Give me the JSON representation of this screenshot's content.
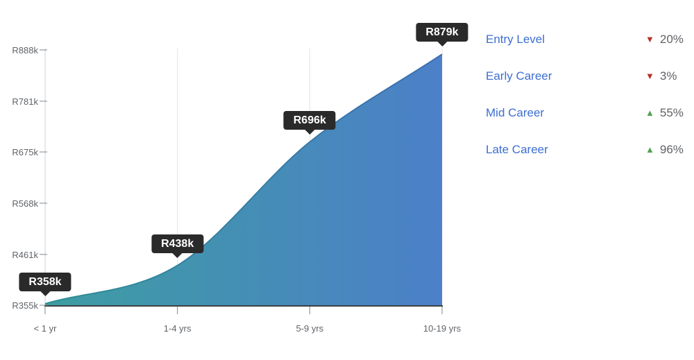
{
  "chart_data": {
    "type": "area",
    "title": "",
    "x_tick_labels": [
      "< 1 yr",
      "1-4 yrs",
      "5-9 yrs",
      "10-19 yrs"
    ],
    "values": [
      358,
      438,
      696,
      879
    ],
    "point_labels": [
      "R358k",
      "R438k",
      "R696k",
      "R879k"
    ],
    "y_tick_labels": [
      "R355k",
      "R461k",
      "R568k",
      "R675k",
      "R781k",
      "R888k"
    ],
    "y_tick_values": [
      355,
      461,
      568,
      675,
      781,
      888
    ],
    "ylim": [
      355,
      888
    ],
    "curve": "monotone",
    "grid": "vertical-only",
    "legend_position": "right"
  },
  "legend": {
    "items": [
      {
        "label": "Entry Level",
        "trend": "down",
        "pct": "20%"
      },
      {
        "label": "Early Career",
        "trend": "down",
        "pct": "3%"
      },
      {
        "label": "Mid Career",
        "trend": "up",
        "pct": "55%"
      },
      {
        "label": "Late Career",
        "trend": "up",
        "pct": "96%"
      }
    ],
    "icons": {
      "up": "▲",
      "down": "▼"
    }
  },
  "colors": {
    "area_fill_start": "#3d9da2",
    "area_fill_end": "#4c80c8",
    "area_stroke_start": "#2e8d93",
    "area_stroke_end": "#3d6db1",
    "tooltip_bg": "#2a2a2a",
    "tooltip_text": "#ffffff",
    "axis_text": "#5f6368",
    "gridline": "#e3e3e3",
    "axis_line": "#cfd1d3",
    "baseline": "#3c4043",
    "tick": "#80868b",
    "legend_label": "#3d6ed2",
    "pct_text": "#5f6165",
    "trend_up": "#52a352",
    "trend_down": "#b5302a"
  }
}
